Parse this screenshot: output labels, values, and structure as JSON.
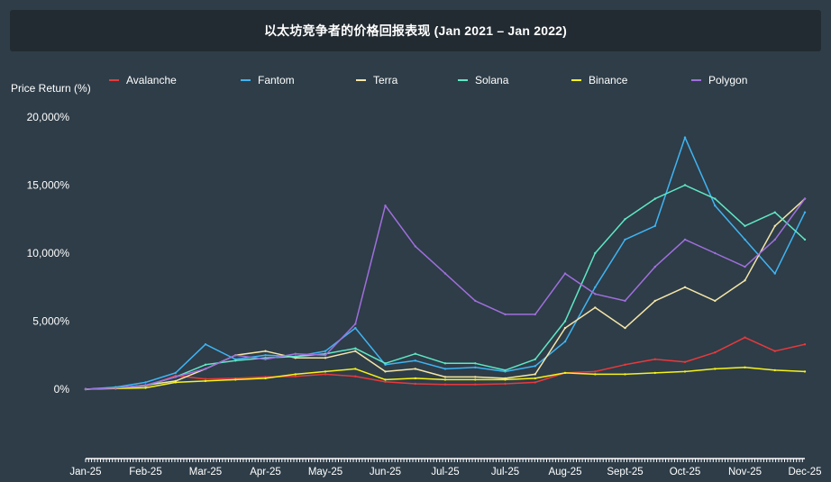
{
  "chart_data": {
    "type": "line",
    "title": "以太坊竞争者的价格回报表现 (Jan 2021 – Jan 2022)",
    "ylabel": "Price Return (%)",
    "xlabel": "",
    "ylim": [
      -5000,
      20000
    ],
    "yticks": [
      "20,000%",
      "15,000%",
      "10,000%",
      "5,000%",
      "0%"
    ],
    "ytick_values": [
      20000,
      15000,
      10000,
      5000,
      0
    ],
    "xtick_labels": [
      "Jan-25",
      "Feb-25",
      "Mar-25",
      "Apr-25",
      "May-25",
      "Jun-25",
      "Jul-25",
      "Jul-25",
      "Aug-25",
      "Sept-25",
      "Oct-25",
      "Nov-25",
      "Dec-25"
    ],
    "legend_position": "top",
    "x": [
      0,
      0.5,
      1,
      1.5,
      2,
      2.5,
      3,
      3.5,
      4,
      4.5,
      5,
      5.5,
      6,
      6.5,
      7,
      7.5,
      8,
      8.5,
      9,
      9.5,
      10,
      10.5,
      11,
      11.5,
      12
    ],
    "series": [
      {
        "name": "Avalanche",
        "color": "#e8393c",
        "values": [
          0,
          100,
          200,
          1000,
          750,
          800,
          900,
          950,
          1100,
          950,
          550,
          400,
          350,
          350,
          400,
          500,
          1200,
          1300,
          1800,
          2200,
          2000,
          2700,
          3800,
          2800,
          3300
        ]
      },
      {
        "name": "Fantom",
        "color": "#3fb4f2",
        "values": [
          0,
          150,
          500,
          1200,
          3300,
          2200,
          2500,
          2400,
          2800,
          4500,
          1800,
          2100,
          1500,
          1600,
          1300,
          1700,
          3500,
          7500,
          11000,
          12000,
          18500,
          13500,
          11000,
          8500,
          13000
        ]
      },
      {
        "name": "Terra",
        "color": "#f5e6a8",
        "values": [
          0,
          80,
          300,
          600,
          1500,
          2500,
          2800,
          2300,
          2300,
          2800,
          1300,
          1500,
          900,
          900,
          800,
          1100,
          4500,
          6000,
          4500,
          6500,
          7500,
          6500,
          8000,
          12000,
          14000
        ]
      },
      {
        "name": "Solana",
        "color": "#5fe8c5",
        "values": [
          0,
          100,
          250,
          900,
          1800,
          2100,
          2300,
          2400,
          2600,
          3000,
          1900,
          2600,
          1900,
          1900,
          1400,
          2200,
          5000,
          10000,
          12500,
          14000,
          15000,
          14000,
          12000,
          13000,
          11000
        ]
      },
      {
        "name": "Binance",
        "color": "#f7f31a",
        "values": [
          0,
          50,
          100,
          500,
          600,
          700,
          800,
          1100,
          1300,
          1500,
          700,
          800,
          700,
          700,
          700,
          800,
          1200,
          1100,
          1100,
          1200,
          1300,
          1500,
          1600,
          1400,
          1300
        ]
      },
      {
        "name": "Polygon",
        "color": "#a06fdc",
        "values": [
          0,
          80,
          300,
          900,
          1500,
          2500,
          2200,
          2600,
          2500,
          4800,
          13500,
          10500,
          8500,
          6500,
          5500,
          5500,
          8500,
          7000,
          6500,
          9000,
          11000,
          10000,
          9000,
          11000,
          14000
        ]
      }
    ]
  }
}
